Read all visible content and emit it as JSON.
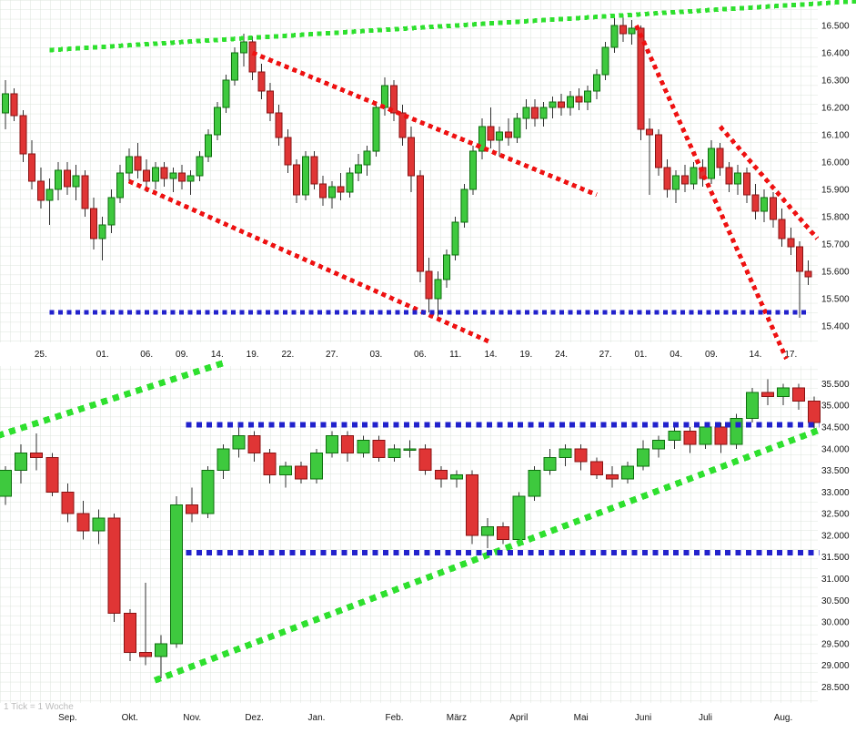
{
  "page": {
    "footer_note": "1 Tick = 1 Woche"
  },
  "colors": {
    "candle_up": "#3ec93e",
    "candle_up_border": "#0d6e0d",
    "candle_down": "#e03535",
    "candle_down_border": "#871212",
    "wick": "#303030",
    "trend_green": "#2ee02e",
    "trend_red": "#ee1111",
    "level_blue": "#2222cc",
    "grid": "#dde4dc",
    "axis_text": "#141414",
    "note_text": "#bbbbbb"
  },
  "chart_data": [
    {
      "type": "candlestick",
      "name": "daily-candlestick-chart",
      "ylim": [
        15360,
        16560
      ],
      "y_tick_values": [
        16500,
        16400,
        16300,
        16200,
        16100,
        16000,
        15900,
        15800,
        15700,
        15600,
        15500,
        15400
      ],
      "y_tick_labels": [
        "16.500",
        "16.400",
        "16.300",
        "16.200",
        "16.100",
        "16.000",
        "15.900",
        "15.800",
        "15.700",
        "15.600",
        "15.500",
        "15.400"
      ],
      "x_labels": [
        {
          "index": 4,
          "label": "25."
        },
        {
          "index": 11,
          "label": "01."
        },
        {
          "index": 16,
          "label": "06."
        },
        {
          "index": 20,
          "label": "09."
        },
        {
          "index": 24,
          "label": "14."
        },
        {
          "index": 28,
          "label": "19."
        },
        {
          "index": 32,
          "label": "22."
        },
        {
          "index": 37,
          "label": "27."
        },
        {
          "index": 42,
          "label": "03."
        },
        {
          "index": 47,
          "label": "06."
        },
        {
          "index": 51,
          "label": "11."
        },
        {
          "index": 55,
          "label": "14."
        },
        {
          "index": 59,
          "label": "19."
        },
        {
          "index": 63,
          "label": "24."
        },
        {
          "index": 68,
          "label": "27."
        },
        {
          "index": 72,
          "label": "01."
        },
        {
          "index": 76,
          "label": "04."
        },
        {
          "index": 80,
          "label": "09."
        },
        {
          "index": 85,
          "label": "14."
        },
        {
          "index": 89,
          "label": "17."
        }
      ],
      "candles": [
        [
          16180,
          16300,
          16120,
          16250
        ],
        [
          16250,
          16270,
          16150,
          16170
        ],
        [
          16170,
          16190,
          16000,
          16030
        ],
        [
          16030,
          16080,
          15900,
          15930
        ],
        [
          15930,
          15980,
          15830,
          15860
        ],
        [
          15860,
          15940,
          15770,
          15900
        ],
        [
          15900,
          16000,
          15860,
          15970
        ],
        [
          15970,
          16000,
          15880,
          15910
        ],
        [
          15910,
          15990,
          15860,
          15950
        ],
        [
          15950,
          15970,
          15800,
          15830
        ],
        [
          15830,
          15870,
          15680,
          15720
        ],
        [
          15720,
          15800,
          15640,
          15770
        ],
        [
          15770,
          15900,
          15740,
          15870
        ],
        [
          15870,
          15990,
          15850,
          15960
        ],
        [
          15960,
          16050,
          15930,
          16020
        ],
        [
          16020,
          16070,
          15940,
          15970
        ],
        [
          15970,
          16010,
          15890,
          15930
        ],
        [
          15930,
          16000,
          15900,
          15980
        ],
        [
          15980,
          16000,
          15910,
          15940
        ],
        [
          15940,
          15980,
          15890,
          15960
        ],
        [
          15960,
          15990,
          15900,
          15930
        ],
        [
          15930,
          15970,
          15880,
          15950
        ],
        [
          15950,
          16040,
          15930,
          16020
        ],
        [
          16020,
          16120,
          16000,
          16100
        ],
        [
          16100,
          16220,
          16080,
          16200
        ],
        [
          16200,
          16320,
          16180,
          16300
        ],
        [
          16300,
          16420,
          16280,
          16400
        ],
        [
          16400,
          16470,
          16350,
          16440
        ],
        [
          16440,
          16460,
          16300,
          16330
        ],
        [
          16330,
          16360,
          16230,
          16260
        ],
        [
          16260,
          16290,
          16150,
          16180
        ],
        [
          16180,
          16210,
          16060,
          16090
        ],
        [
          16090,
          16120,
          15960,
          15990
        ],
        [
          15990,
          16010,
          15850,
          15880
        ],
        [
          15880,
          16040,
          15860,
          16020
        ],
        [
          16020,
          16040,
          15900,
          15920
        ],
        [
          15920,
          15950,
          15840,
          15870
        ],
        [
          15870,
          15930,
          15830,
          15910
        ],
        [
          15910,
          15960,
          15860,
          15890
        ],
        [
          15890,
          15980,
          15870,
          15960
        ],
        [
          15960,
          16030,
          15930,
          15990
        ],
        [
          15990,
          16060,
          15950,
          16040
        ],
        [
          16040,
          16220,
          16020,
          16200
        ],
        [
          16200,
          16310,
          16170,
          16280
        ],
        [
          16280,
          16300,
          16150,
          16180
        ],
        [
          16180,
          16210,
          16060,
          16090
        ],
        [
          16090,
          16130,
          15890,
          15950
        ],
        [
          15950,
          15970,
          15560,
          15600
        ],
        [
          15600,
          15650,
          15450,
          15500
        ],
        [
          15500,
          15600,
          15430,
          15570
        ],
        [
          15570,
          15680,
          15540,
          15660
        ],
        [
          15660,
          15800,
          15640,
          15780
        ],
        [
          15780,
          15920,
          15760,
          15900
        ],
        [
          15900,
          16060,
          15880,
          16040
        ],
        [
          16040,
          16160,
          16010,
          16130
        ],
        [
          16130,
          16200,
          16050,
          16080
        ],
        [
          16080,
          16130,
          16020,
          16110
        ],
        [
          16110,
          16160,
          16060,
          16090
        ],
        [
          16090,
          16180,
          16070,
          16160
        ],
        [
          16160,
          16230,
          16120,
          16200
        ],
        [
          16200,
          16230,
          16130,
          16160
        ],
        [
          16160,
          16220,
          16130,
          16200
        ],
        [
          16200,
          16240,
          16160,
          16220
        ],
        [
          16220,
          16250,
          16170,
          16200
        ],
        [
          16200,
          16260,
          16170,
          16240
        ],
        [
          16240,
          16270,
          16190,
          16220
        ],
        [
          16220,
          16280,
          16190,
          16260
        ],
        [
          16260,
          16340,
          16230,
          16320
        ],
        [
          16320,
          16440,
          16300,
          16420
        ],
        [
          16420,
          16530,
          16400,
          16500
        ],
        [
          16500,
          16540,
          16440,
          16470
        ],
        [
          16470,
          16520,
          16430,
          16490
        ],
        [
          16490,
          16500,
          16080,
          16120
        ],
        [
          16120,
          16160,
          15880,
          16100
        ],
        [
          16100,
          16120,
          15950,
          15980
        ],
        [
          15980,
          16010,
          15870,
          15900
        ],
        [
          15900,
          15970,
          15850,
          15950
        ],
        [
          15950,
          15990,
          15890,
          15920
        ],
        [
          15920,
          16000,
          15900,
          15980
        ],
        [
          15980,
          16010,
          15910,
          15940
        ],
        [
          15940,
          16080,
          15920,
          16050
        ],
        [
          16050,
          16070,
          15950,
          15980
        ],
        [
          15980,
          16000,
          15890,
          15920
        ],
        [
          15920,
          15990,
          15880,
          15960
        ],
        [
          15960,
          15980,
          15850,
          15880
        ],
        [
          15880,
          15920,
          15790,
          15820
        ],
        [
          15820,
          15900,
          15780,
          15870
        ],
        [
          15870,
          15890,
          15760,
          15790
        ],
        [
          15790,
          15830,
          15690,
          15720
        ],
        [
          15720,
          15760,
          15660,
          15690
        ],
        [
          15690,
          15710,
          15430,
          15600
        ],
        [
          15600,
          15640,
          15550,
          15580
        ]
      ],
      "overlays": [
        {
          "name": "trend-line-green-resistance",
          "color": "green",
          "width": 5,
          "points": [
            [
              5,
              16410
            ],
            [
              97,
              16590
            ]
          ]
        },
        {
          "name": "trend-line-red-channel-upper",
          "color": "red",
          "width": 5,
          "points": [
            [
              28,
              16400
            ],
            [
              67,
              15880
            ]
          ]
        },
        {
          "name": "trend-line-red-channel-lower",
          "color": "red",
          "width": 5,
          "points": [
            [
              14,
              15930
            ],
            [
              55,
              15340
            ]
          ]
        },
        {
          "name": "trend-line-red-right-steep",
          "color": "red",
          "width": 5,
          "points": [
            [
              71.5,
              16500
            ],
            [
              88.5,
              15280
            ]
          ]
        },
        {
          "name": "trend-line-red-right-shallow",
          "color": "red",
          "width": 5,
          "points": [
            [
              81,
              16130
            ],
            [
              92,
              15720
            ]
          ]
        },
        {
          "name": "support-line-blue",
          "color": "blue",
          "width": 5,
          "points": [
            [
              5,
              15450
            ],
            [
              91,
              15450
            ]
          ]
        }
      ]
    },
    {
      "type": "candlestick",
      "name": "weekly-candlestick-chart",
      "ylim": [
        28450,
        35740
      ],
      "y_tick_values": [
        35500,
        35000,
        34500,
        34000,
        33500,
        33000,
        32500,
        32000,
        31500,
        31000,
        30500,
        30000,
        29500,
        29000,
        28500
      ],
      "y_tick_labels": [
        "35.500",
        "35.000",
        "34.500",
        "34.000",
        "33.500",
        "33.000",
        "32.500",
        "32.000",
        "31.500",
        "31.000",
        "30.500",
        "30.000",
        "29.500",
        "29.000",
        "28.500"
      ],
      "x_labels": [
        {
          "index": 4,
          "label": "Sep."
        },
        {
          "index": 8,
          "label": "Okt."
        },
        {
          "index": 12,
          "label": "Nov."
        },
        {
          "index": 16,
          "label": "Dez."
        },
        {
          "index": 20,
          "label": "Jan."
        },
        {
          "index": 25,
          "label": "Feb."
        },
        {
          "index": 29,
          "label": "März"
        },
        {
          "index": 33,
          "label": "April"
        },
        {
          "index": 37,
          "label": "Mai"
        },
        {
          "index": 41,
          "label": "Juni"
        },
        {
          "index": 45,
          "label": "Juli"
        },
        {
          "index": 50,
          "label": "Aug."
        }
      ],
      "candles": [
        [
          32900,
          33600,
          32700,
          33500
        ],
        [
          33500,
          34100,
          33200,
          33900
        ],
        [
          33900,
          34350,
          33500,
          33800
        ],
        [
          33800,
          33900,
          32900,
          33000
        ],
        [
          33000,
          33200,
          32300,
          32500
        ],
        [
          32500,
          32800,
          31900,
          32100
        ],
        [
          32100,
          32600,
          31800,
          32400
        ],
        [
          32400,
          32500,
          30000,
          30200
        ],
        [
          30200,
          30300,
          29100,
          29300
        ],
        [
          29300,
          30900,
          29000,
          29200
        ],
        [
          29200,
          29700,
          28700,
          29500
        ],
        [
          29500,
          32900,
          29400,
          32700
        ],
        [
          32700,
          33100,
          32300,
          32500
        ],
        [
          32500,
          33600,
          32400,
          33500
        ],
        [
          33500,
          34100,
          33300,
          34000
        ],
        [
          34000,
          34500,
          33800,
          34300
        ],
        [
          34300,
          34400,
          33700,
          33900
        ],
        [
          33900,
          34000,
          33200,
          33400
        ],
        [
          33400,
          33700,
          33100,
          33600
        ],
        [
          33600,
          33700,
          33200,
          33300
        ],
        [
          33300,
          34000,
          33200,
          33900
        ],
        [
          33900,
          34400,
          33800,
          34300
        ],
        [
          34300,
          34400,
          33700,
          33900
        ],
        [
          33900,
          34300,
          33800,
          34200
        ],
        [
          34200,
          34300,
          33700,
          33800
        ],
        [
          33800,
          34100,
          33700,
          34000
        ],
        [
          34000,
          34200,
          33800,
          34000
        ],
        [
          34000,
          34100,
          33400,
          33500
        ],
        [
          33500,
          33600,
          33100,
          33300
        ],
        [
          33300,
          33500,
          33100,
          33400
        ],
        [
          33400,
          33500,
          31800,
          32000
        ],
        [
          32000,
          32400,
          31700,
          32200
        ],
        [
          32200,
          32300,
          31800,
          31900
        ],
        [
          31900,
          33000,
          31800,
          32900
        ],
        [
          32900,
          33600,
          32800,
          33500
        ],
        [
          33500,
          34000,
          33400,
          33800
        ],
        [
          33800,
          34100,
          33600,
          34000
        ],
        [
          34000,
          34100,
          33500,
          33700
        ],
        [
          33700,
          33800,
          33300,
          33400
        ],
        [
          33400,
          33600,
          33100,
          33300
        ],
        [
          33300,
          33700,
          33200,
          33600
        ],
        [
          33600,
          34200,
          33500,
          34000
        ],
        [
          34000,
          34300,
          33800,
          34200
        ],
        [
          34200,
          34500,
          34000,
          34400
        ],
        [
          34400,
          34500,
          33900,
          34100
        ],
        [
          34100,
          34600,
          34000,
          34500
        ],
        [
          34500,
          34600,
          33900,
          34100
        ],
        [
          34100,
          34800,
          34000,
          34700
        ],
        [
          34700,
          35400,
          34600,
          35300
        ],
        [
          35300,
          35600,
          35000,
          35200
        ],
        [
          35200,
          35500,
          35000,
          35400
        ],
        [
          35400,
          35500,
          34900,
          35100
        ],
        [
          35100,
          35200,
          34400,
          34600
        ]
      ],
      "overlays": [
        {
          "name": "trend-line-green-left-steep",
          "color": "green",
          "width": 7,
          "points": [
            [
              -0.5,
              34300
            ],
            [
              14.2,
              36000
            ]
          ]
        },
        {
          "name": "trend-line-green-support",
          "color": "green",
          "width": 7,
          "points": [
            [
              9.6,
              28650
            ],
            [
              52.3,
              34430
            ]
          ]
        },
        {
          "name": "resistance-line-blue",
          "color": "blue",
          "width": 6,
          "points": [
            [
              11.6,
              34550
            ],
            [
              52.3,
              34550
            ]
          ]
        },
        {
          "name": "support-line-blue",
          "color": "blue",
          "width": 6,
          "points": [
            [
              11.6,
              31600
            ],
            [
              52.3,
              31600
            ]
          ]
        }
      ]
    }
  ]
}
